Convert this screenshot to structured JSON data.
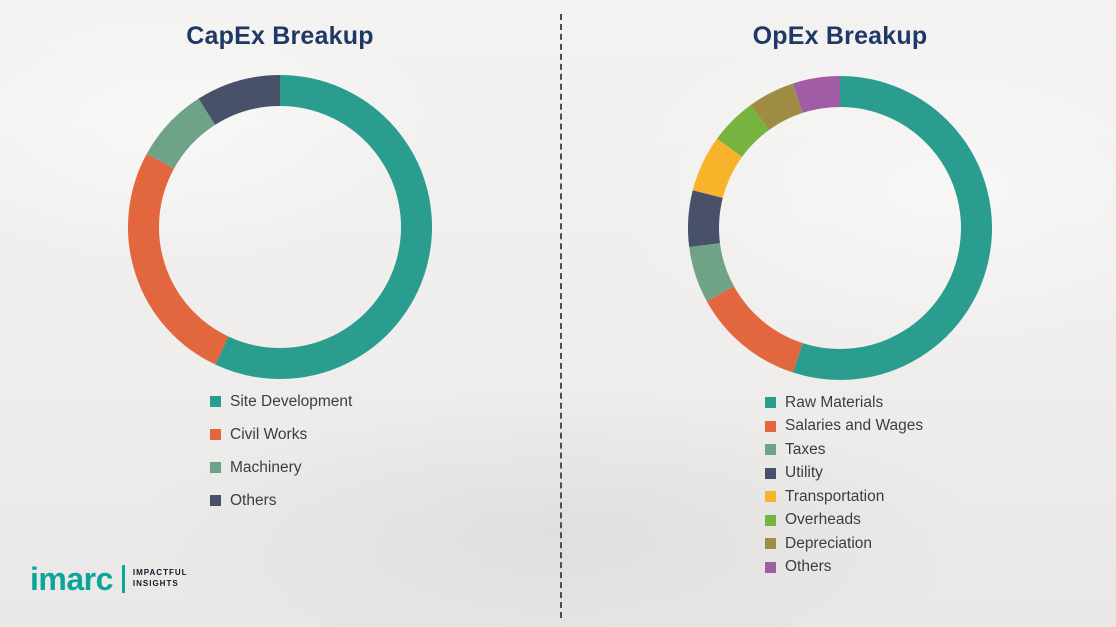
{
  "chart_data": [
    {
      "type": "pie",
      "donut": true,
      "title": "CapEx Breakup",
      "categories": [
        "Site Development",
        "Civil Works",
        "Machinery",
        "Others"
      ],
      "values": [
        57,
        26,
        8,
        9
      ],
      "colors": [
        "#2a9d8f",
        "#e3673e",
        "#6fa388",
        "#485169"
      ],
      "legend_position": "bottom",
      "title_color": "#1f3864"
    },
    {
      "type": "pie",
      "donut": true,
      "title": "OpEx Breakup",
      "categories": [
        "Raw Materials",
        "Salaries and Wages",
        "Taxes",
        "Utility",
        "Transportation",
        "Overheads",
        "Depreciation",
        "Others"
      ],
      "values": [
        55,
        12,
        6,
        6,
        6,
        5,
        5,
        5
      ],
      "colors": [
        "#2a9d8f",
        "#e3673e",
        "#6fa388",
        "#485169",
        "#f7b32a",
        "#77b43f",
        "#a08d44",
        "#a15ca4"
      ],
      "legend_position": "bottom",
      "title_color": "#1f3864"
    }
  ],
  "logo": {
    "name": "imarc",
    "tagline_line1": "IMPACTFUL",
    "tagline_line2": "INSIGHTS",
    "brand_color": "#0ca49b"
  }
}
